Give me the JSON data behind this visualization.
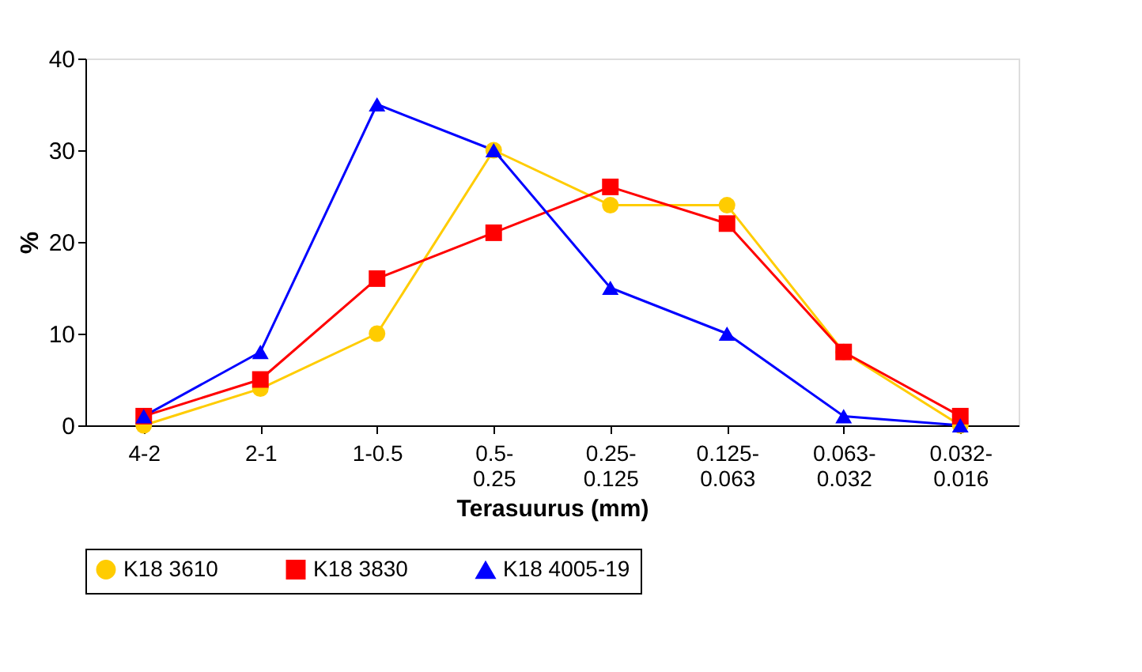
{
  "chart_data": {
    "type": "line",
    "xlabel": "Terasuurus (mm)",
    "ylabel": "%",
    "categories": [
      "4-2",
      "2-1",
      "1-0.5",
      "0.5-\n0.25",
      "0.25-\n0.125",
      "0.125-\n0.063",
      "0.063-\n0.032",
      "0.032-\n0.016"
    ],
    "series": [
      {
        "name": "K18 3610",
        "color": "#ffcc00",
        "marker": "circle",
        "values": [
          0,
          4,
          10,
          30,
          24,
          24,
          8,
          0
        ]
      },
      {
        "name": "K18 3830",
        "color": "#ff0000",
        "marker": "square",
        "values": [
          1,
          5,
          16,
          21,
          26,
          22,
          8,
          1
        ]
      },
      {
        "name": "K18 4005-19",
        "color": "#0000ff",
        "marker": "triangle",
        "values": [
          1,
          8,
          35,
          30,
          15,
          10,
          1,
          0
        ]
      }
    ],
    "ylim": [
      0,
      40
    ],
    "yticks": [
      0,
      10,
      20,
      30,
      40
    ],
    "grid": false,
    "legend": "bottom",
    "line_style": "solid"
  }
}
